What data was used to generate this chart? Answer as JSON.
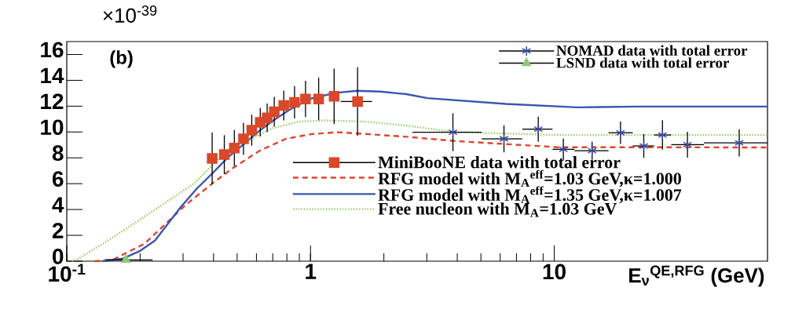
{
  "chart_data": {
    "type": "line",
    "xlabel": "E$_{ν}$$^{QE,RFG}$ (GeV)",
    "annotations": [
      "(b)",
      "×10$^{-39}$"
    ],
    "log": "x",
    "xlim": [
      0.1,
      75
    ],
    "ylim": [
      0,
      17
    ],
    "xticks": [
      {
        "value": 0.1,
        "label": "10$^{-1}$"
      },
      1,
      10
    ],
    "yticks": [
      0,
      2,
      4,
      6,
      8,
      10,
      12,
      14,
      16
    ],
    "legend": "top right",
    "series": [
      {
        "name": "NOMAD data with total error",
        "type": "scatter",
        "marker": "cross",
        "color": "#3a4aa8",
        "x": [
          3.84,
          6.22,
          8.6,
          10.9,
          14.3,
          18.7,
          23.3,
          27.8,
          35.2,
          57.4
        ],
        "values": [
          9.98,
          9.47,
          10.22,
          8.66,
          8.55,
          9.94,
          8.92,
          9.77,
          9.02,
          9.16
        ],
        "errors": [
          1.47,
          1.05,
          0.97,
          0.83,
          0.7,
          0.86,
          0.92,
          1.14,
          1.0,
          1.05
        ],
        "xerrors": [
          [
            2.62,
            5.04
          ],
          [
            5.04,
            7.39
          ],
          [
            7.4,
            9.84
          ],
          [
            9.84,
            12.1
          ],
          [
            12.1,
            16.7
          ],
          [
            16.7,
            21.0
          ],
          [
            21.0,
            25.7
          ],
          [
            25.7,
            30.2
          ],
          [
            30.2,
            41.1
          ],
          [
            41.1,
            75
          ]
        ]
      },
      {
        "name": "LSND data with total error",
        "type": "scatter",
        "marker": "triangle",
        "color": "#8fc96e",
        "x": [
          0.175
        ],
        "values": [
          0.1
        ],
        "xerrors": [
          [
            0.144,
            0.225
          ]
        ]
      },
      {
        "name": "MiniBooNE data with total error",
        "type": "scatter",
        "marker": "square",
        "color": "#d9482b",
        "x": [
          0.395,
          0.443,
          0.487,
          0.531,
          0.574,
          0.622,
          0.664,
          0.71,
          0.777,
          0.86,
          0.954,
          1.08,
          1.25,
          1.56
        ],
        "values": [
          7.95,
          8.25,
          8.76,
          9.47,
          10.14,
          10.75,
          11.1,
          11.57,
          12.05,
          12.3,
          12.56,
          12.56,
          12.76,
          12.36
        ],
        "errors": [
          2.0,
          1.5,
          1.4,
          1.25,
          1.2,
          1.1,
          1.1,
          1.15,
          1.15,
          1.25,
          1.4,
          1.65,
          2.15,
          2.65
        ],
        "xerrors": [
          null,
          null,
          null,
          null,
          null,
          null,
          null,
          null,
          null,
          null,
          null,
          null,
          null,
          [
            1.33,
            1.79
          ]
        ]
      },
      {
        "name": "RFG model with M$_{A}$$^{eff}$=1.03 GeV,κ=1.000",
        "line_style": "dashed",
        "color": "#e0452c",
        "x": [
          0.13,
          0.154,
          0.208,
          0.309,
          0.396,
          0.483,
          0.618,
          0.792,
          1.01,
          1.3,
          1.58,
          2.47,
          3.86,
          10.4,
          21.9,
          75
        ],
        "values": [
          0,
          0.1,
          1.34,
          4.39,
          6.02,
          7.24,
          8.55,
          9.47,
          9.84,
          9.98,
          9.88,
          9.63,
          9.31,
          8.82,
          8.82,
          8.8
        ]
      },
      {
        "name": "RFG model with M$_{A}$$^{eff}$=1.35 GeV,κ=1.007",
        "line_style": "solid",
        "color": "#3c55b0",
        "x": [
          0.14,
          0.17,
          0.2,
          0.23,
          0.294,
          0.341,
          0.396,
          0.459,
          0.533,
          0.618,
          0.718,
          0.832,
          1.01,
          1.27,
          1.55,
          1.93,
          2.47,
          3.02,
          6.34,
          12.4,
          21.9,
          75
        ],
        "values": [
          0,
          0.2,
          0.8,
          1.6,
          4.2,
          5.6,
          6.8,
          8.05,
          9.07,
          10.1,
          11.0,
          11.8,
          12.6,
          13.03,
          13.19,
          13.13,
          12.93,
          12.62,
          12.17,
          11.91,
          11.97,
          11.97
        ]
      },
      {
        "name": "Free nucleon with M$_{A}$=1.03 GeV",
        "line_style": "dotted",
        "color": "#9acd6a",
        "x": [
          0.105,
          0.112,
          0.158,
          0.23,
          0.333,
          0.427,
          0.546,
          0.7,
          0.897,
          1.15,
          1.67,
          2.47,
          3.86,
          10.4,
          75
        ],
        "values": [
          0,
          0.2,
          1.95,
          3.98,
          6.02,
          8.05,
          9.27,
          10.3,
          10.8,
          10.9,
          10.8,
          10.5,
          10.0,
          9.77,
          9.77
        ]
      }
    ]
  }
}
